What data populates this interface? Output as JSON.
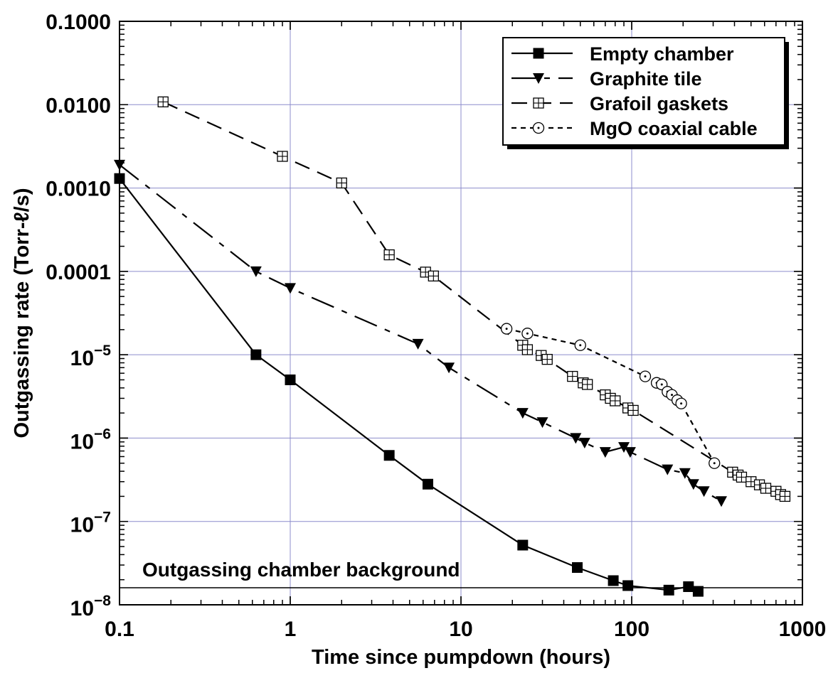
{
  "chart_data": {
    "type": "line",
    "title": "",
    "xlabel": "Time since pumpdown (hours)",
    "ylabel": "Outgassing rate (Torr-ℓ/s)",
    "xscale": "log",
    "yscale": "log",
    "xlim": [
      0.1,
      1000
    ],
    "ylim": [
      1e-08,
      0.1
    ],
    "grid": true,
    "legend_position": "top-right",
    "x_tick_labels": [
      {
        "value": 0.1,
        "label": "0.1"
      },
      {
        "value": 1,
        "label": "1"
      },
      {
        "value": 10,
        "label": "10"
      },
      {
        "value": 100,
        "label": "100"
      },
      {
        "value": 1000,
        "label": "1000"
      }
    ],
    "y_tick_labels": [
      {
        "value": 0.1,
        "label": "0.1000"
      },
      {
        "value": 0.01,
        "label": "0.0100"
      },
      {
        "value": 0.001,
        "label": "0.0010"
      },
      {
        "value": 0.0001,
        "label": "0.0001"
      },
      {
        "value": 1e-05,
        "base": "10",
        "exp": "−5"
      },
      {
        "value": 1e-06,
        "base": "10",
        "exp": "−6"
      },
      {
        "value": 1e-07,
        "base": "10",
        "exp": "−7"
      },
      {
        "value": 1e-08,
        "base": "10",
        "exp": "−8"
      }
    ],
    "series": [
      {
        "name": "Empty chamber",
        "marker": "filled-square",
        "line": "solid",
        "x": [
          0.1,
          0.63,
          1.0,
          3.8,
          6.4,
          23,
          48,
          78,
          95,
          165,
          215,
          245
        ],
        "y": [
          0.0013,
          1e-05,
          5e-06,
          6.2e-07,
          2.8e-07,
          5.2e-08,
          2.8e-08,
          1.95e-08,
          1.7e-08,
          1.5e-08,
          1.65e-08,
          1.45e-08
        ]
      },
      {
        "name": "Graphite tile",
        "marker": "filled-triangle-down",
        "line": "long-short-dash",
        "x": [
          0.1,
          0.63,
          1.0,
          5.6,
          8.5,
          23,
          30,
          47,
          53,
          70,
          90,
          98,
          162,
          205,
          230,
          265,
          335
        ],
        "y": [
          0.0019,
          0.0001,
          6.3e-05,
          1.35e-05,
          7e-06,
          2e-06,
          1.55e-06,
          1e-06,
          8.8e-07,
          6.8e-07,
          7.8e-07,
          6.8e-07,
          4.2e-07,
          3.8e-07,
          2.8e-07,
          2.3e-07,
          1.75e-07
        ]
      },
      {
        "name": "Grafoil gaskets",
        "marker": "square-plus",
        "line": "long-dash",
        "x": [
          0.18,
          0.9,
          2.0,
          3.8,
          6.2,
          6.9,
          23,
          24.5,
          29.5,
          32,
          45,
          52,
          55,
          70,
          75,
          80,
          95,
          102,
          390,
          420,
          440,
          500,
          560,
          610,
          700,
          745,
          790
        ],
        "y": [
          0.0108,
          0.0024,
          0.00115,
          0.000158,
          9.8e-05,
          8.8e-05,
          1.3e-05,
          1.15e-05,
          9.8e-06,
          8.8e-06,
          5.5e-06,
          4.6e-06,
          4.4e-06,
          3.3e-06,
          3e-06,
          2.8e-06,
          2.3e-06,
          2.15e-06,
          3.9e-07,
          3.6e-07,
          3.4e-07,
          3e-07,
          2.75e-07,
          2.5e-07,
          2.3e-07,
          2.1e-07,
          2e-07
        ]
      },
      {
        "name": "MgO coaxial cable",
        "marker": "circle-dot",
        "line": "short-dash",
        "x": [
          18.5,
          24.5,
          50,
          120,
          140,
          150,
          162,
          172,
          185,
          195,
          305
        ],
        "y": [
          2.05e-05,
          1.8e-05,
          1.3e-05,
          5.5e-06,
          4.6e-06,
          4.4e-06,
          3.6e-06,
          3.3e-06,
          2.85e-06,
          2.6e-06,
          5e-07
        ]
      }
    ],
    "reference_line": {
      "label": "Outgassing chamber background",
      "y": 1.6e-08
    }
  }
}
